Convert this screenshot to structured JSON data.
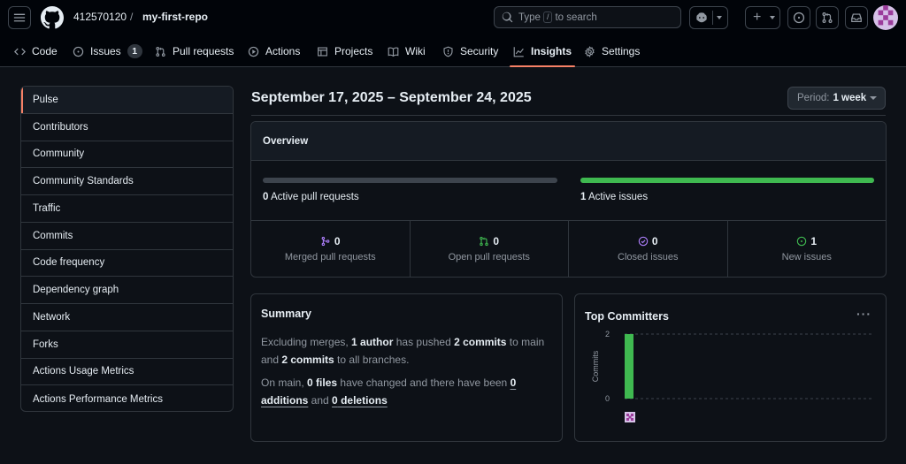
{
  "header": {
    "owner": "412570120",
    "separator": "/",
    "repo": "my-first-repo",
    "search": {
      "before": "Type",
      "key": "/",
      "after": "to search"
    },
    "plus_label": "+"
  },
  "tabs": [
    {
      "label": "Code",
      "icon": "code-icon"
    },
    {
      "label": "Issues",
      "icon": "issue-opened-icon",
      "count": "1"
    },
    {
      "label": "Pull requests",
      "icon": "git-pull-request-icon"
    },
    {
      "label": "Actions",
      "icon": "play-icon"
    },
    {
      "label": "Projects",
      "icon": "table-icon"
    },
    {
      "label": "Wiki",
      "icon": "book-icon"
    },
    {
      "label": "Security",
      "icon": "shield-icon"
    },
    {
      "label": "Insights",
      "icon": "graph-icon",
      "active": true
    },
    {
      "label": "Settings",
      "icon": "gear-icon"
    }
  ],
  "sidebar": {
    "items": [
      {
        "label": "Pulse",
        "selected": true
      },
      {
        "label": "Contributors"
      },
      {
        "label": "Community"
      },
      {
        "label": "Community Standards"
      },
      {
        "label": "Traffic"
      },
      {
        "label": "Commits"
      },
      {
        "label": "Code frequency"
      },
      {
        "label": "Dependency graph"
      },
      {
        "label": "Network"
      },
      {
        "label": "Forks"
      },
      {
        "label": "Actions Usage Metrics"
      },
      {
        "label": "Actions Performance Metrics"
      }
    ]
  },
  "main": {
    "date_range": "September 17, 2025 – September 24, 2025",
    "period": {
      "label": "Period:",
      "value": "1 week"
    }
  },
  "overview": {
    "title": "Overview",
    "active_prs": {
      "count": "0",
      "label": "Active pull requests",
      "fill": 0
    },
    "active_issues": {
      "count": "1",
      "label": "Active issues",
      "fill": 1
    },
    "stats": [
      {
        "value": "0",
        "label": "Merged pull requests",
        "icon": "git-merge-icon",
        "color": "#ab7df8"
      },
      {
        "value": "0",
        "label": "Open pull requests",
        "icon": "git-pull-request-icon",
        "color": "#3fb950"
      },
      {
        "value": "0",
        "label": "Closed issues",
        "icon": "issue-closed-icon",
        "color": "#ab7df8"
      },
      {
        "value": "1",
        "label": "New issues",
        "icon": "issue-opened-icon",
        "color": "#3fb950"
      }
    ]
  },
  "summary": {
    "title": "Summary",
    "p1": {
      "t1": "Excluding merges, ",
      "authors": "1 author",
      "t2": " has pushed ",
      "commits_main": "2 commits",
      "t3": " to main and ",
      "commits_all": "2 commits",
      "t4": " to all branches."
    },
    "p2": {
      "t1": "On main, ",
      "files": "0 files",
      "t2": " have changed and there have been ",
      "add_num": "0",
      "add_label": " additions",
      "t3": " and ",
      "del_num": "0",
      "del_label": " deletions"
    }
  },
  "committers": {
    "title": "Top Committers",
    "menu": "···",
    "chart_data": {
      "type": "bar",
      "categories": [
        ""
      ],
      "values": [
        2
      ],
      "ylabel": "Commits",
      "ylim": [
        0,
        2
      ],
      "yticks": [
        "0",
        "2"
      ],
      "grid": true
    }
  },
  "colors": {
    "accent_underline": "#f78166",
    "green": "#3fb950",
    "purple": "#ab7df8",
    "red": "#f85149",
    "bar_empty": "#3d444d"
  }
}
